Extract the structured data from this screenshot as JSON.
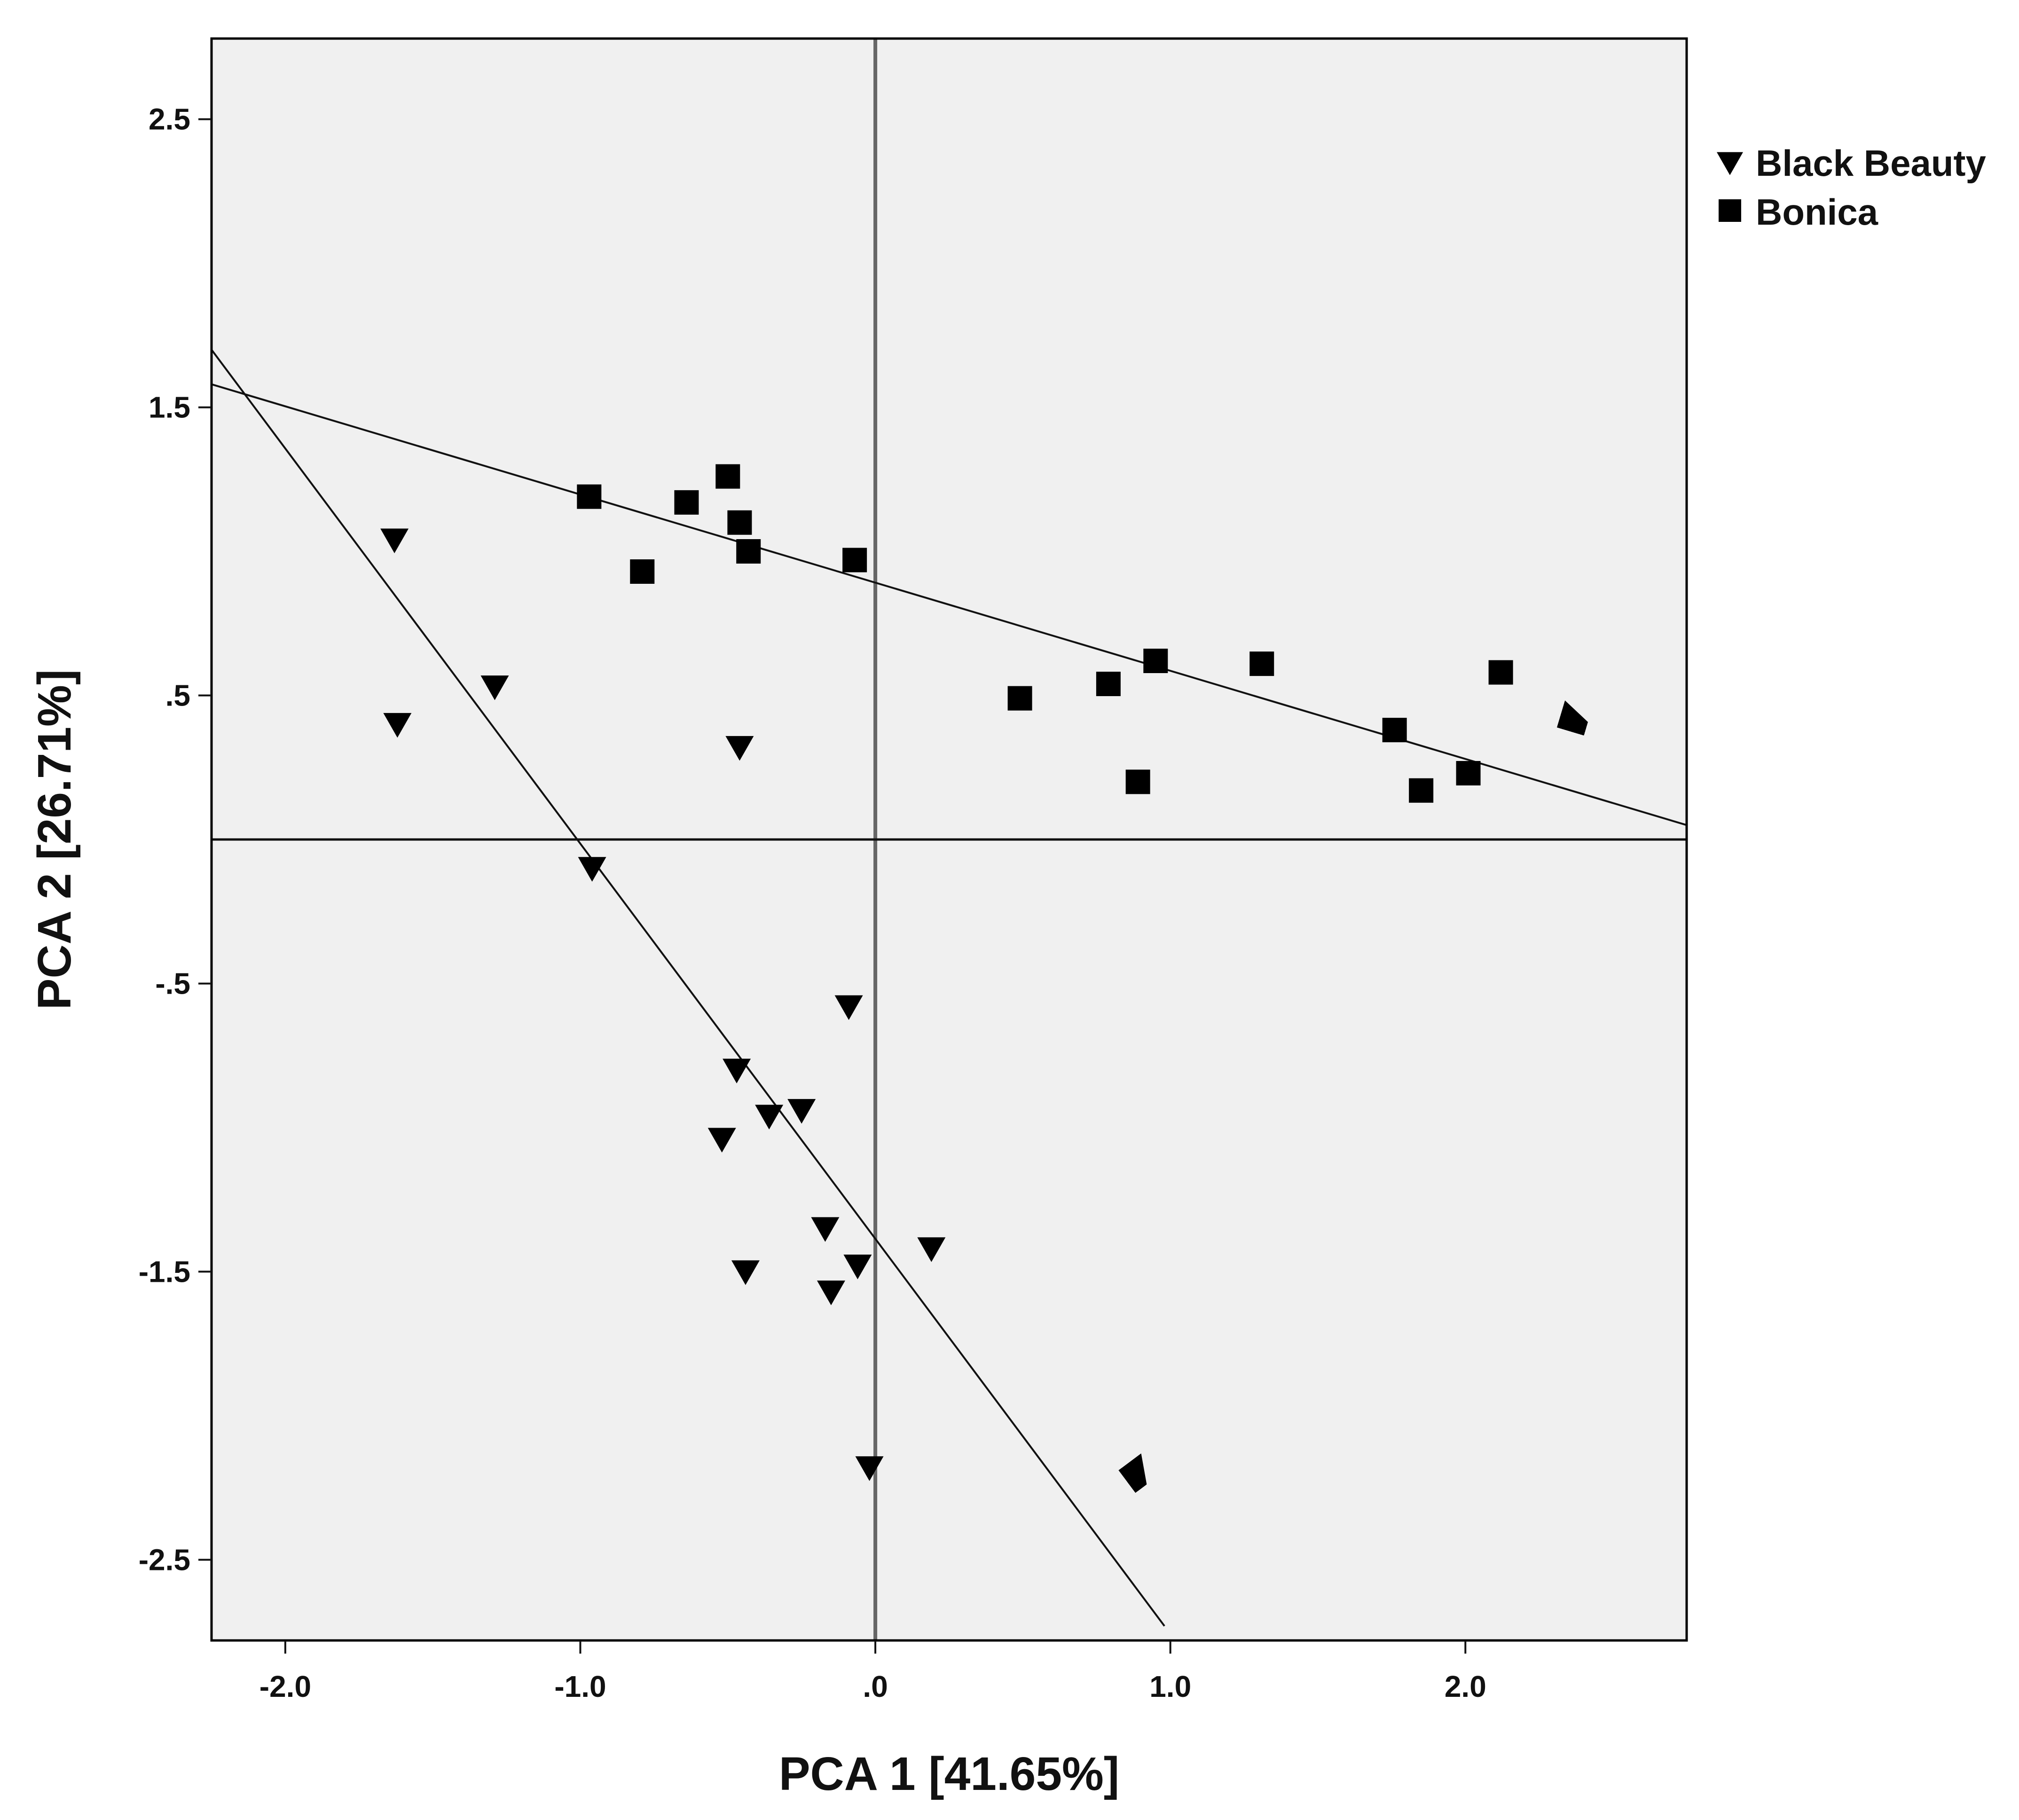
{
  "chart_data": {
    "type": "scatter",
    "xlabel": "PCA 1 [41.65%]",
    "ylabel": "PCA 2 [26.71%]",
    "xlim": [
      -2.25,
      2.75
    ],
    "ylim": [
      -2.78,
      2.78
    ],
    "x_ticks": [
      -2.0,
      -1.0,
      0.0,
      1.0,
      2.0
    ],
    "x_tick_labels": [
      "-2.0",
      "-1.0",
      ".0",
      "1.0",
      "2.0"
    ],
    "y_ticks": [
      2.5,
      1.5,
      0.5,
      -0.5,
      -1.5,
      -2.5
    ],
    "y_tick_labels": [
      "2.5",
      "1.5",
      ".5",
      "-.5",
      "-1.5",
      "-2.5"
    ],
    "grid": false,
    "legend_position": "top-right, outside plot",
    "reference_lines": {
      "x": 0.0,
      "y": 0.0
    },
    "series": [
      {
        "name": "Black Beauty",
        "marker": "triangle-down",
        "color": "#000000",
        "x": [
          -1.63,
          -1.29,
          -1.62,
          -0.46,
          -0.96,
          -0.09,
          -0.47,
          -0.36,
          -0.25,
          -0.52,
          -0.17,
          -0.44,
          -0.06,
          -0.15,
          0.19,
          -0.02
        ],
        "y": [
          1.04,
          0.53,
          0.4,
          0.32,
          -0.1,
          -0.58,
          -0.8,
          -0.96,
          -0.94,
          -1.04,
          -1.35,
          -1.5,
          -1.48,
          -1.57,
          -1.42,
          -2.18
        ]
      },
      {
        "name": "Bonica",
        "marker": "square",
        "color": "#000000",
        "x": [
          -0.97,
          -0.79,
          -0.64,
          -0.5,
          -0.46,
          -0.43,
          -0.07,
          0.49,
          0.79,
          0.95,
          0.89,
          1.31,
          1.76,
          1.85,
          2.01,
          2.12
        ],
        "y": [
          1.19,
          0.93,
          1.17,
          1.26,
          1.1,
          1.0,
          0.97,
          0.49,
          0.54,
          0.62,
          0.2,
          0.61,
          0.38,
          0.17,
          0.23,
          0.58
        ]
      }
    ],
    "arrows": [
      {
        "from": [
          -2.25,
          1.58
        ],
        "to": [
          2.75,
          0.05
        ]
      },
      {
        "from": [
          -2.25,
          1.7
        ],
        "to": [
          0.98,
          -2.73
        ]
      }
    ]
  }
}
